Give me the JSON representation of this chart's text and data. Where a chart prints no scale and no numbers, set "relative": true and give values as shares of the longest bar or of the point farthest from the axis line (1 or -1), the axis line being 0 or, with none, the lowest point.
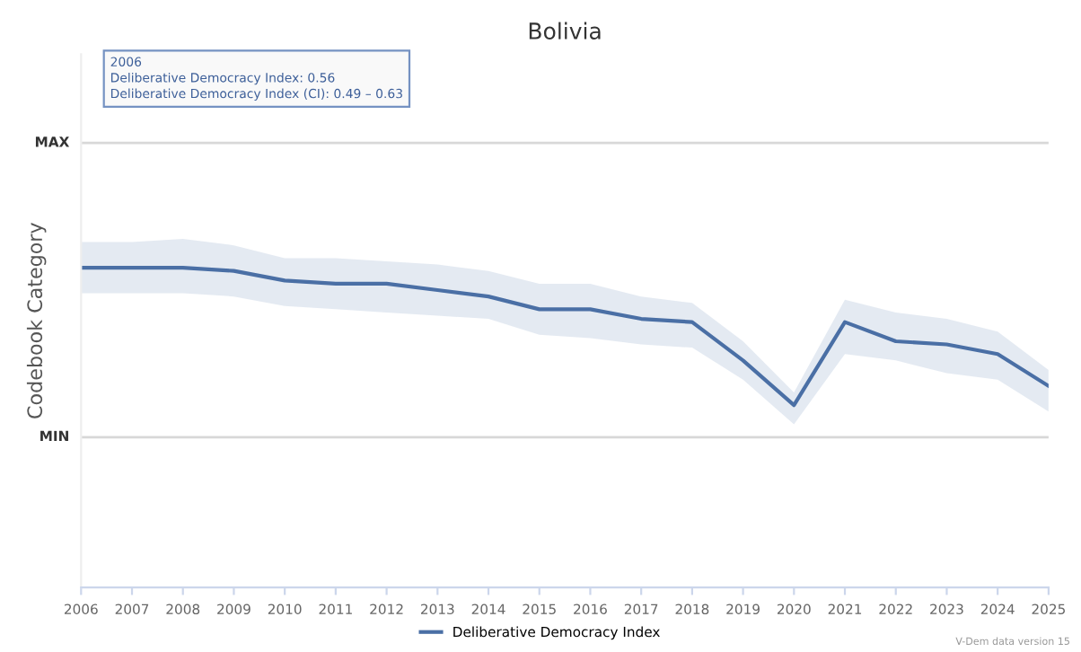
{
  "chart_data": {
    "type": "line",
    "title": "Bolivia",
    "ylabel": "Codebook Category",
    "relative": true,
    "x": [
      2006,
      2007,
      2008,
      2009,
      2010,
      2011,
      2012,
      2013,
      2014,
      2015,
      2016,
      2017,
      2018,
      2019,
      2020,
      2021,
      2022,
      2023,
      2024,
      2025
    ],
    "series": [
      {
        "name": "Deliberative Democracy Index",
        "color": "#4a6fa5",
        "values": [
          1,
          1,
          1,
          0.99,
          0.96,
          0.95,
          0.95,
          0.93,
          0.91,
          0.87,
          0.87,
          0.84,
          0.83,
          0.71,
          0.57,
          0.83,
          0.77,
          0.76,
          0.73,
          0.63
        ],
        "lower": [
          0.92,
          0.92,
          0.92,
          0.91,
          0.88,
          0.87,
          0.86,
          0.85,
          0.84,
          0.79,
          0.78,
          0.76,
          0.75,
          0.65,
          0.51,
          0.73,
          0.71,
          0.67,
          0.65,
          0.55
        ],
        "upper": [
          1.08,
          1.08,
          1.09,
          1.07,
          1.03,
          1.03,
          1.02,
          1.01,
          0.99,
          0.95,
          0.95,
          0.91,
          0.89,
          0.77,
          0.61,
          0.9,
          0.86,
          0.84,
          0.8,
          0.68
        ]
      }
    ],
    "xlim": [
      2006,
      2025
    ],
    "xticks": [
      2006,
      2007,
      2008,
      2009,
      2010,
      2011,
      2012,
      2013,
      2014,
      2015,
      2016,
      2017,
      2018,
      2019,
      2020,
      2021,
      2022,
      2023,
      2024,
      2025
    ],
    "ref_lines": [
      {
        "axis": "y",
        "value": 1.39,
        "label": "MAX",
        "color": "#d8d8d8"
      },
      {
        "axis": "y",
        "value": 0.47,
        "label": "MIN",
        "color": "#d8d8d8"
      }
    ],
    "legend": "bottom",
    "marker": "none",
    "line_style": "solid",
    "annotations": [
      "2006\nDeliberative Democracy Index: 0.56\nDeliberative Democracy Index (CI): 0.49 – 0.63",
      "V-Dem data version 15"
    ]
  }
}
